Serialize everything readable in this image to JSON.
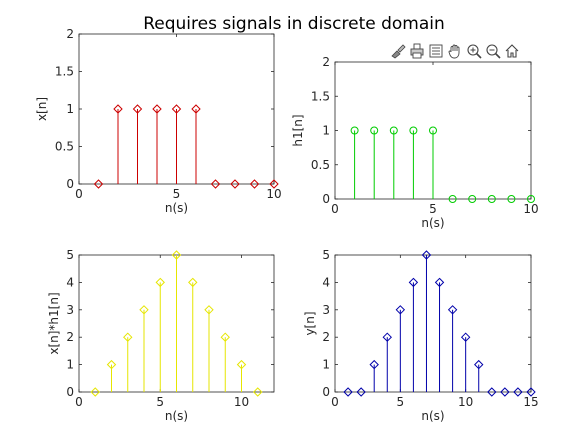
{
  "figure": {
    "title": "Requires signals in discrete domain"
  },
  "toolbar": {
    "items": [
      {
        "icon": "brush-icon",
        "name": "brush-button"
      },
      {
        "icon": "print-icon",
        "name": "print-button"
      },
      {
        "icon": "legend-icon",
        "name": "legend-button"
      },
      {
        "icon": "pan-icon",
        "name": "pan-button"
      },
      {
        "icon": "zoom-in-icon",
        "name": "zoom-in-button"
      },
      {
        "icon": "zoom-out-icon",
        "name": "zoom-out-button"
      },
      {
        "icon": "home-icon",
        "name": "home-button"
      }
    ]
  },
  "chart_data": [
    {
      "id": "xn",
      "type": "stem",
      "xlabel": "n(s)",
      "ylabel": "x[n]",
      "xlim": [
        0,
        10
      ],
      "ylim": [
        0,
        2
      ],
      "xticks": [
        0,
        5,
        10
      ],
      "yticks": [
        0,
        0.5,
        1,
        1.5,
        2
      ],
      "ytick_labels": [
        "0",
        "0.5",
        "1",
        "1.5",
        "2"
      ],
      "color": "#cc0000",
      "marker": "diamond",
      "x": [
        1,
        2,
        3,
        4,
        5,
        6,
        7,
        8,
        9,
        10
      ],
      "y": [
        0,
        1,
        1,
        1,
        1,
        1,
        0,
        0,
        0,
        0
      ]
    },
    {
      "id": "h1n",
      "type": "stem",
      "xlabel": "n(s)",
      "ylabel": "h1[n]",
      "xlim": [
        0,
        10
      ],
      "ylim": [
        0,
        2
      ],
      "xticks": [
        0,
        5,
        10
      ],
      "yticks": [
        0,
        0.5,
        1,
        1.5,
        2
      ],
      "ytick_labels": [
        "0",
        "0.5",
        "1",
        "1.5",
        "2"
      ],
      "color": "#00cc00",
      "marker": "circle",
      "x": [
        1,
        2,
        3,
        4,
        5,
        6,
        7,
        8,
        9,
        10
      ],
      "y": [
        1,
        1,
        1,
        1,
        1,
        0,
        0,
        0,
        0,
        0
      ]
    },
    {
      "id": "xh",
      "type": "stem",
      "xlabel": "n(s)",
      "ylabel": "x[n]*h1[n]",
      "xlim": [
        0,
        12
      ],
      "ylim": [
        0,
        5
      ],
      "xticks": [
        0,
        5,
        10
      ],
      "yticks": [
        0,
        1,
        2,
        3,
        4,
        5
      ],
      "ytick_labels": [
        "0",
        "1",
        "2",
        "3",
        "4",
        "5"
      ],
      "color": "#e6e600",
      "marker": "diamond",
      "x": [
        1,
        2,
        3,
        4,
        5,
        6,
        7,
        8,
        9,
        10,
        11
      ],
      "y": [
        0,
        1,
        2,
        3,
        4,
        5,
        4,
        3,
        2,
        1,
        0
      ]
    },
    {
      "id": "yn",
      "type": "stem",
      "xlabel": "n(s)",
      "ylabel": "y[n]",
      "xlim": [
        0,
        15
      ],
      "ylim": [
        0,
        5
      ],
      "xticks": [
        0,
        5,
        10,
        15
      ],
      "yticks": [
        0,
        1,
        2,
        3,
        4,
        5
      ],
      "ytick_labels": [
        "0",
        "1",
        "2",
        "3",
        "4",
        "5"
      ],
      "color": "#0000aa",
      "marker": "diamond",
      "x": [
        1,
        2,
        3,
        4,
        5,
        6,
        7,
        8,
        9,
        10,
        11,
        12,
        13,
        14,
        15
      ],
      "y": [
        0,
        0,
        1,
        2,
        3,
        4,
        5,
        4,
        3,
        2,
        1,
        0,
        0,
        0,
        0
      ]
    }
  ]
}
